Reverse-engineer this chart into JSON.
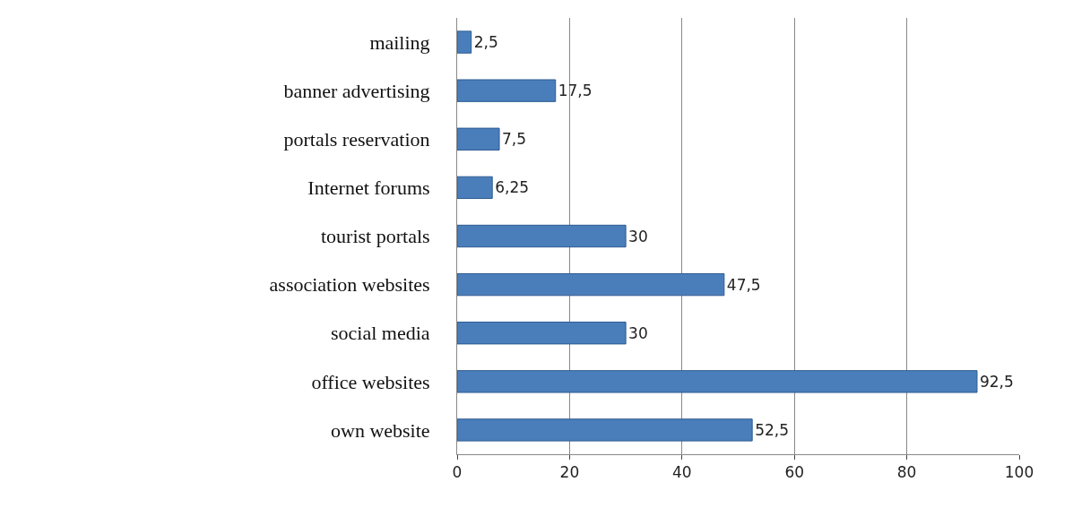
{
  "chart_data": {
    "type": "bar",
    "orientation": "horizontal",
    "categories": [
      "mailing",
      "banner advertising",
      "portals reservation",
      "Internet forums",
      "tourist portals",
      "association websites",
      "social media",
      "office websites",
      "own website"
    ],
    "values": [
      2.5,
      17.5,
      7.5,
      6.25,
      30,
      47.5,
      30,
      92.5,
      52.5
    ],
    "value_labels": [
      "2,5",
      "17,5",
      "7,5",
      "6,25",
      "30",
      "47,5",
      "30",
      "92,5",
      "52,5"
    ],
    "color": "#4a7ebb",
    "xlim": [
      0,
      100
    ],
    "xticks": [
      0,
      20,
      40,
      60,
      80,
      100
    ],
    "grid": "x",
    "legend": false
  }
}
